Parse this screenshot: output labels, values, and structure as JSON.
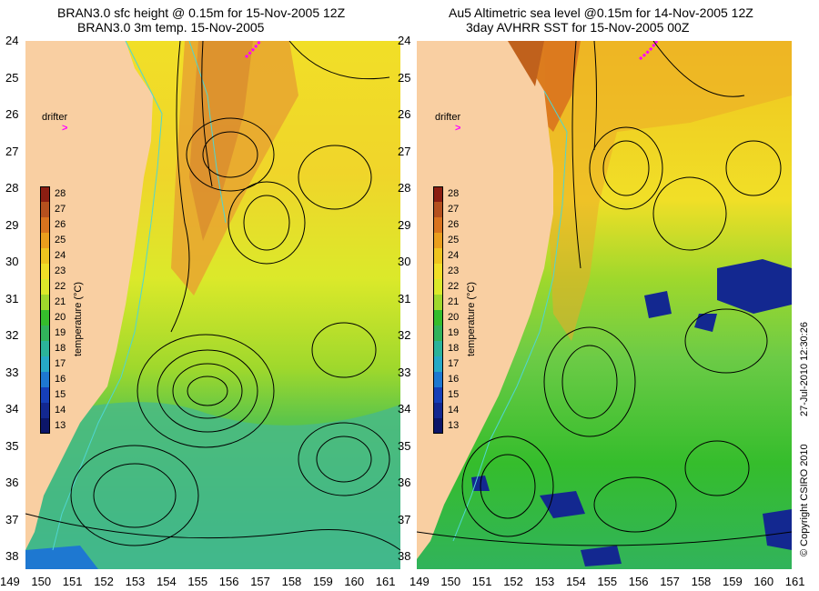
{
  "titles": {
    "left_line1": "BRAN3.0 sfc height @ 0.15m for 15-Nov-2005 12Z",
    "left_line2": "BRAN3.0 3m temp. 15-Nov-2005",
    "right_line1": "Au5 Altimetric sea level  @0.15m  for 14-Nov-2005 12Z",
    "right_line2": "3day AVHRR SST for 15-Nov-2005 00Z"
  },
  "axes": {
    "lat_labels": [
      "24",
      "25",
      "26",
      "27",
      "28",
      "29",
      "30",
      "31",
      "32",
      "33",
      "34",
      "35",
      "36",
      "37",
      "38"
    ],
    "lon_labels": [
      "149",
      "150",
      "151",
      "152",
      "153",
      "154",
      "155",
      "156",
      "157",
      "158",
      "159",
      "160",
      "161"
    ]
  },
  "colorbar": {
    "ticks": [
      "28",
      "27",
      "26",
      "25",
      "24",
      "23",
      "22",
      "21",
      "20",
      "19",
      "18",
      "17",
      "16",
      "15",
      "14",
      "13"
    ],
    "label": "temperature (°C)",
    "colors": [
      "#8b1e12",
      "#b5501e",
      "#d9731e",
      "#ea9e1d",
      "#efc41f",
      "#f1df27",
      "#dbe92a",
      "#9fd82c",
      "#35bd2c",
      "#31b35b",
      "#2bb39a",
      "#26a9c6",
      "#1e78d1",
      "#163fb8",
      "#132890",
      "#0c1669"
    ]
  },
  "annotations": {
    "drifter_left": "drifter",
    "drifter_right": "drifter",
    "drifter_marker": ">"
  },
  "footer": {
    "copyright": "© Copyright CSIRO 2010",
    "timestamp": "27-Jul-2010 12:30:26"
  },
  "colors": {
    "land": "#f9cfa2",
    "contour": "#000000",
    "isobath": "#4fd6d1",
    "drifter": "#ff00ff"
  }
}
